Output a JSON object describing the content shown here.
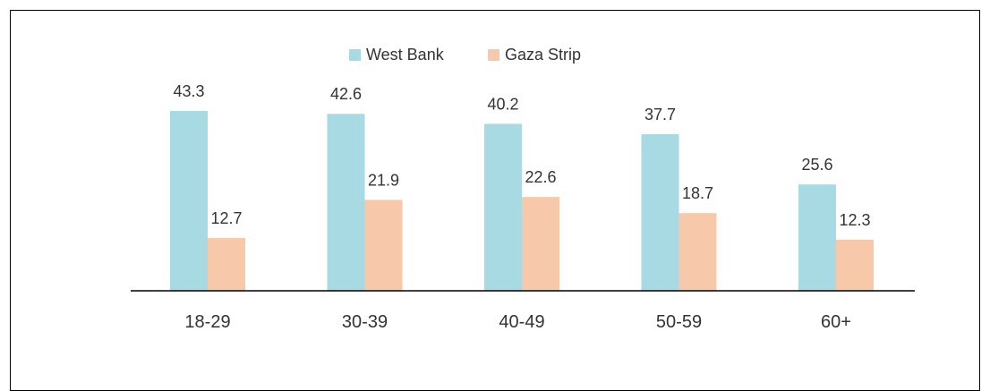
{
  "chart_data": {
    "type": "bar",
    "categories": [
      "18-29",
      "30-39",
      "40-49",
      "50-59",
      "60+"
    ],
    "series": [
      {
        "name": "West Bank",
        "values": [
          43.3,
          42.6,
          40.2,
          37.7,
          25.6
        ],
        "color": "#A8DAE3"
      },
      {
        "name": "Gaza Strip",
        "values": [
          12.7,
          21.9,
          22.6,
          18.7,
          12.3
        ],
        "color": "#F7C9AA"
      }
    ],
    "title": "",
    "xlabel": "",
    "ylabel": "",
    "ylim": [
      0,
      50
    ],
    "grid": false,
    "legend": "top-center"
  },
  "colors": {
    "border": "#000000",
    "axis": "#000000",
    "text": "#333333"
  }
}
